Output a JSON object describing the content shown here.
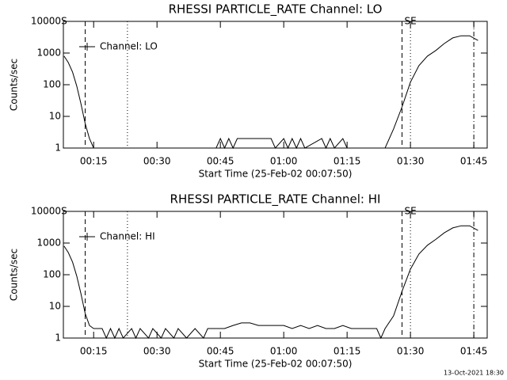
{
  "chart_data": [
    {
      "type": "line",
      "title": "RHESSI PARTICLE_RATE Channel: LO",
      "xlabel": "Start Time (25-Feb-02 00:07:50)",
      "ylabel": "Counts/sec",
      "yscale": "log",
      "ylim": [
        1,
        10000
      ],
      "yticks": [
        1,
        10,
        100,
        1000,
        10000
      ],
      "xlim": [
        "00:07:50",
        "01:48:10"
      ],
      "xticks": [
        "00:15",
        "00:30",
        "00:45",
        "01:00",
        "01:15",
        "01:30",
        "01:45"
      ],
      "legend": "upper left",
      "series": [
        {
          "name": "Channel: LO",
          "color": "#000000",
          "x": [
            "00:08",
            "00:09",
            "00:10",
            "00:11",
            "00:12",
            "00:13",
            "00:14",
            "00:15",
            "00:44",
            "00:45",
            "00:46",
            "00:47",
            "00:48",
            "00:49",
            "00:50",
            "00:51",
            "00:53",
            "00:55",
            "00:57",
            "00:58",
            "01:00",
            "01:01",
            "01:02",
            "01:03",
            "01:04",
            "01:05",
            "01:09",
            "01:10",
            "01:11",
            "01:12",
            "01:14",
            "01:15",
            "01:24",
            "01:26",
            "01:28",
            "01:30",
            "01:32",
            "01:34",
            "01:36",
            "01:38",
            "01:40",
            "01:42",
            "01:44",
            "01:46"
          ],
          "values": [
            800,
            500,
            250,
            90,
            25,
            6,
            2,
            1,
            1,
            2,
            1,
            2,
            1,
            2,
            2,
            2,
            2,
            2,
            2,
            1,
            2,
            1,
            2,
            1,
            2,
            1,
            2,
            1,
            2,
            1,
            2,
            1,
            1,
            4,
            20,
            120,
            400,
            800,
            1200,
            2000,
            3000,
            3500,
            3500,
            2500
          ]
        }
      ],
      "vlines": [
        {
          "x": "00:13",
          "style": "dashed"
        },
        {
          "x": "00:23",
          "style": "dotted"
        },
        {
          "x": "01:28",
          "style": "dashed"
        },
        {
          "x": "01:30",
          "style": "dotted"
        },
        {
          "x": "01:45",
          "style": "dashdot"
        }
      ],
      "annotations": [
        {
          "text": "S",
          "x": "00:08"
        },
        {
          "text": "SE",
          "x": "01:30"
        }
      ]
    },
    {
      "type": "line",
      "title": "RHESSI PARTICLE_RATE Channel: HI",
      "xlabel": "Start Time (25-Feb-02 00:07:50)",
      "ylabel": "Counts/sec",
      "yscale": "log",
      "ylim": [
        1,
        10000
      ],
      "yticks": [
        1,
        10,
        100,
        1000,
        10000
      ],
      "xlim": [
        "00:07:50",
        "01:48:10"
      ],
      "xticks": [
        "00:15",
        "00:30",
        "00:45",
        "01:00",
        "01:15",
        "01:30",
        "01:45"
      ],
      "legend": "upper left",
      "series": [
        {
          "name": "Channel: HI",
          "color": "#000000",
          "x": [
            "00:08",
            "00:09",
            "00:10",
            "00:11",
            "00:12",
            "00:13",
            "00:14",
            "00:15",
            "00:17",
            "00:18",
            "00:19",
            "00:20",
            "00:21",
            "00:22",
            "00:24",
            "00:25",
            "00:26",
            "00:28",
            "00:29",
            "00:31",
            "00:32",
            "00:34",
            "00:35",
            "00:37",
            "00:39",
            "00:41",
            "00:42",
            "00:44",
            "00:46",
            "00:48",
            "00:50",
            "00:52",
            "00:54",
            "00:56",
            "00:58",
            "01:00",
            "01:02",
            "01:04",
            "01:06",
            "01:08",
            "01:10",
            "01:12",
            "01:14",
            "01:16",
            "01:18",
            "01:20",
            "01:22",
            "01:23",
            "01:24",
            "01:26",
            "01:28",
            "01:30",
            "01:32",
            "01:34",
            "01:36",
            "01:38",
            "01:40",
            "01:42",
            "01:44",
            "01:46"
          ],
          "values": [
            800,
            500,
            250,
            90,
            25,
            6,
            2.5,
            2,
            2,
            1,
            2,
            1,
            2,
            1,
            2,
            1,
            2,
            1,
            2,
            1,
            2,
            1,
            2,
            1,
            2,
            1,
            2,
            2,
            2,
            2.5,
            3,
            3,
            2.5,
            2.5,
            2.5,
            2.5,
            2,
            2.5,
            2,
            2.5,
            2,
            2,
            2.5,
            2,
            2,
            2,
            2,
            1,
            2,
            5,
            30,
            150,
            450,
            850,
            1300,
            2100,
            3000,
            3500,
            3500,
            2500
          ]
        }
      ],
      "vlines": [
        {
          "x": "00:13",
          "style": "dashed"
        },
        {
          "x": "00:23",
          "style": "dotted"
        },
        {
          "x": "01:28",
          "style": "dashed"
        },
        {
          "x": "01:30",
          "style": "dotted"
        },
        {
          "x": "01:45",
          "style": "dashdot"
        }
      ],
      "annotations": [
        {
          "text": "S",
          "x": "00:08"
        },
        {
          "text": "SE",
          "x": "01:30"
        }
      ]
    }
  ],
  "footer": "13-Oct-2021 18:30"
}
